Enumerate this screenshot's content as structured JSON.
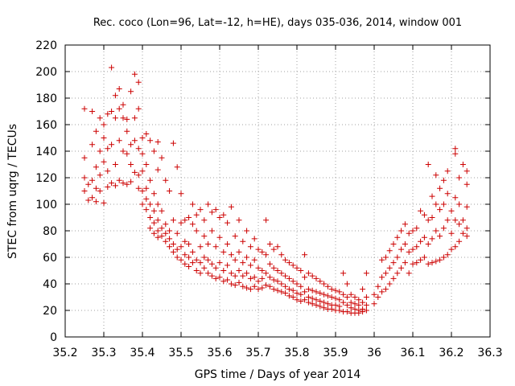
{
  "chart_data": {
    "type": "scatter",
    "title": "Rec. coco (Lon=96, Lat=-12, h=HE), days 035-036, 2014, window 001",
    "xlabel": "GPS time / Days of year 2014",
    "ylabel": "STEC from uqrg / TECUs",
    "xlim": [
      35.2,
      36.3
    ],
    "ylim": [
      0,
      220
    ],
    "xticks": [
      35.2,
      35.3,
      35.4,
      35.5,
      35.6,
      35.7,
      35.8,
      35.9,
      36.0,
      36.1,
      36.2,
      36.3
    ],
    "xtick_labels": [
      "35.2",
      "35.3",
      "35.4",
      "35.5",
      "35.6",
      "35.7",
      "35.8",
      "35.9",
      "36",
      "36.1",
      "36.2",
      "36.3"
    ],
    "yticks": [
      0,
      20,
      40,
      60,
      80,
      100,
      120,
      140,
      160,
      180,
      200,
      220
    ],
    "ytick_labels": [
      "0",
      "20",
      "40",
      "60",
      "80",
      "100",
      "120",
      "140",
      "160",
      "180",
      "200",
      "220"
    ],
    "grid": true,
    "marker": "plus",
    "color": "#cc0000",
    "points": [
      [
        35.25,
        172
      ],
      [
        35.25,
        135
      ],
      [
        35.25,
        120
      ],
      [
        35.25,
        110
      ],
      [
        35.26,
        103
      ],
      [
        35.26,
        115
      ],
      [
        35.27,
        170
      ],
      [
        35.27,
        145
      ],
      [
        35.27,
        118
      ],
      [
        35.27,
        105
      ],
      [
        35.28,
        155
      ],
      [
        35.28,
        128
      ],
      [
        35.28,
        112
      ],
      [
        35.28,
        102
      ],
      [
        35.29,
        165
      ],
      [
        35.29,
        140
      ],
      [
        35.29,
        122
      ],
      [
        35.29,
        110
      ],
      [
        35.3,
        160
      ],
      [
        35.3,
        150
      ],
      [
        35.3,
        132
      ],
      [
        35.3,
        101
      ],
      [
        35.31,
        168
      ],
      [
        35.31,
        142
      ],
      [
        35.31,
        125
      ],
      [
        35.31,
        113
      ],
      [
        35.32,
        170
      ],
      [
        35.32,
        203
      ],
      [
        35.32,
        145
      ],
      [
        35.32,
        116
      ],
      [
        35.33,
        165
      ],
      [
        35.33,
        182
      ],
      [
        35.33,
        130
      ],
      [
        35.33,
        114
      ],
      [
        35.34,
        187
      ],
      [
        35.34,
        172
      ],
      [
        35.34,
        148
      ],
      [
        35.34,
        118
      ],
      [
        35.35,
        175
      ],
      [
        35.35,
        165
      ],
      [
        35.35,
        140
      ],
      [
        35.35,
        116
      ],
      [
        35.36,
        164
      ],
      [
        35.36,
        155
      ],
      [
        35.36,
        138
      ],
      [
        35.36,
        115
      ],
      [
        35.37,
        185
      ],
      [
        35.37,
        145
      ],
      [
        35.37,
        130
      ],
      [
        35.37,
        117
      ],
      [
        35.38,
        198
      ],
      [
        35.38,
        165
      ],
      [
        35.38,
        148
      ],
      [
        35.38,
        124
      ],
      [
        35.39,
        192
      ],
      [
        35.39,
        172
      ],
      [
        35.39,
        142
      ],
      [
        35.39,
        122
      ],
      [
        35.39,
        112
      ],
      [
        35.4,
        150
      ],
      [
        35.4,
        138
      ],
      [
        35.4,
        125
      ],
      [
        35.4,
        110
      ],
      [
        35.4,
        100
      ],
      [
        35.41,
        153
      ],
      [
        35.41,
        130
      ],
      [
        35.41,
        112
      ],
      [
        35.41,
        104
      ],
      [
        35.41,
        96
      ],
      [
        35.42,
        148
      ],
      [
        35.42,
        118
      ],
      [
        35.42,
        100
      ],
      [
        35.42,
        90
      ],
      [
        35.42,
        82
      ],
      [
        35.43,
        140
      ],
      [
        35.43,
        108
      ],
      [
        35.43,
        95
      ],
      [
        35.43,
        86
      ],
      [
        35.43,
        78
      ],
      [
        35.44,
        147
      ],
      [
        35.44,
        126
      ],
      [
        35.44,
        100
      ],
      [
        35.44,
        88
      ],
      [
        35.44,
        80
      ],
      [
        35.44,
        75
      ],
      [
        35.45,
        135
      ],
      [
        35.45,
        95
      ],
      [
        35.45,
        82
      ],
      [
        35.45,
        76
      ],
      [
        35.46,
        118
      ],
      [
        35.46,
        85
      ],
      [
        35.46,
        78
      ],
      [
        35.46,
        72
      ],
      [
        35.47,
        110
      ],
      [
        35.47,
        80
      ],
      [
        35.47,
        74
      ],
      [
        35.47,
        68
      ],
      [
        35.48,
        146
      ],
      [
        35.48,
        88
      ],
      [
        35.48,
        70
      ],
      [
        35.48,
        64
      ],
      [
        35.49,
        128
      ],
      [
        35.49,
        78
      ],
      [
        35.49,
        66
      ],
      [
        35.49,
        60
      ],
      [
        35.5,
        108
      ],
      [
        35.5,
        86
      ],
      [
        35.5,
        68
      ],
      [
        35.5,
        58
      ],
      [
        35.51,
        88
      ],
      [
        35.51,
        72
      ],
      [
        35.51,
        62
      ],
      [
        35.51,
        55
      ],
      [
        35.52,
        90
      ],
      [
        35.52,
        70
      ],
      [
        35.52,
        60
      ],
      [
        35.52,
        53
      ],
      [
        35.53,
        100
      ],
      [
        35.53,
        85
      ],
      [
        35.53,
        64
      ],
      [
        35.53,
        56
      ],
      [
        35.54,
        92
      ],
      [
        35.54,
        80
      ],
      [
        35.54,
        58
      ],
      [
        35.54,
        50
      ],
      [
        35.55,
        96
      ],
      [
        35.55,
        68
      ],
      [
        35.55,
        56
      ],
      [
        35.55,
        48
      ],
      [
        35.56,
        88
      ],
      [
        35.56,
        76
      ],
      [
        35.56,
        60
      ],
      [
        35.56,
        52
      ],
      [
        35.57,
        100
      ],
      [
        35.57,
        70
      ],
      [
        35.57,
        58
      ],
      [
        35.57,
        48
      ],
      [
        35.58,
        94
      ],
      [
        35.58,
        80
      ],
      [
        35.58,
        55
      ],
      [
        35.58,
        46
      ],
      [
        35.59,
        96
      ],
      [
        35.59,
        68
      ],
      [
        35.59,
        52
      ],
      [
        35.59,
        44
      ],
      [
        35.6,
        90
      ],
      [
        35.6,
        75
      ],
      [
        35.6,
        56
      ],
      [
        35.6,
        45
      ],
      [
        35.61,
        92
      ],
      [
        35.61,
        64
      ],
      [
        35.61,
        50
      ],
      [
        35.61,
        42
      ],
      [
        35.62,
        86
      ],
      [
        35.62,
        70
      ],
      [
        35.62,
        54
      ],
      [
        35.62,
        43
      ],
      [
        35.63,
        98
      ],
      [
        35.63,
        62
      ],
      [
        35.63,
        48
      ],
      [
        35.63,
        40
      ],
      [
        35.64,
        76
      ],
      [
        35.64,
        58
      ],
      [
        35.64,
        46
      ],
      [
        35.64,
        39
      ],
      [
        35.65,
        88
      ],
      [
        35.65,
        64
      ],
      [
        35.65,
        50
      ],
      [
        35.65,
        41
      ],
      [
        35.66,
        72
      ],
      [
        35.66,
        56
      ],
      [
        35.66,
        46
      ],
      [
        35.66,
        38
      ],
      [
        35.67,
        80
      ],
      [
        35.67,
        60
      ],
      [
        35.67,
        48
      ],
      [
        35.67,
        37
      ],
      [
        35.68,
        68
      ],
      [
        35.68,
        54
      ],
      [
        35.68,
        44
      ],
      [
        35.68,
        36
      ],
      [
        35.69,
        74
      ],
      [
        35.69,
        58
      ],
      [
        35.69,
        45
      ],
      [
        35.69,
        38
      ],
      [
        35.7,
        66
      ],
      [
        35.7,
        52
      ],
      [
        35.7,
        42
      ],
      [
        35.7,
        36
      ],
      [
        35.71,
        64
      ],
      [
        35.71,
        50
      ],
      [
        35.71,
        44
      ],
      [
        35.71,
        37
      ],
      [
        35.72,
        88
      ],
      [
        35.72,
        62
      ],
      [
        35.72,
        48
      ],
      [
        35.72,
        39
      ],
      [
        35.73,
        70
      ],
      [
        35.73,
        55
      ],
      [
        35.73,
        45
      ],
      [
        35.73,
        38
      ],
      [
        35.74,
        66
      ],
      [
        35.74,
        52
      ],
      [
        35.74,
        43
      ],
      [
        35.74,
        36
      ],
      [
        35.75,
        68
      ],
      [
        35.75,
        50
      ],
      [
        35.75,
        42
      ],
      [
        35.75,
        35
      ],
      [
        35.76,
        62
      ],
      [
        35.76,
        48
      ],
      [
        35.76,
        40
      ],
      [
        35.76,
        34
      ],
      [
        35.77,
        58
      ],
      [
        35.77,
        46
      ],
      [
        35.77,
        38
      ],
      [
        35.77,
        33
      ],
      [
        35.78,
        56
      ],
      [
        35.78,
        44
      ],
      [
        35.78,
        36
      ],
      [
        35.78,
        31
      ],
      [
        35.79,
        54
      ],
      [
        35.79,
        42
      ],
      [
        35.79,
        35
      ],
      [
        35.79,
        30
      ],
      [
        35.8,
        52
      ],
      [
        35.8,
        40
      ],
      [
        35.8,
        33
      ],
      [
        35.8,
        28
      ],
      [
        35.81,
        50
      ],
      [
        35.81,
        38
      ],
      [
        35.81,
        32
      ],
      [
        35.81,
        27
      ],
      [
        35.82,
        62
      ],
      [
        35.82,
        45
      ],
      [
        35.82,
        34
      ],
      [
        35.82,
        28
      ],
      [
        35.83,
        48
      ],
      [
        35.83,
        36
      ],
      [
        35.83,
        30
      ],
      [
        35.83,
        26
      ],
      [
        35.84,
        46
      ],
      [
        35.84,
        35
      ],
      [
        35.84,
        29
      ],
      [
        35.84,
        25
      ],
      [
        35.85,
        44
      ],
      [
        35.85,
        34
      ],
      [
        35.85,
        28
      ],
      [
        35.85,
        24
      ],
      [
        35.86,
        42
      ],
      [
        35.86,
        33
      ],
      [
        35.86,
        27
      ],
      [
        35.86,
        23
      ],
      [
        35.87,
        40
      ],
      [
        35.87,
        32
      ],
      [
        35.87,
        26
      ],
      [
        35.87,
        22
      ],
      [
        35.88,
        38
      ],
      [
        35.88,
        31
      ],
      [
        35.88,
        25
      ],
      [
        35.88,
        21
      ],
      [
        35.89,
        36
      ],
      [
        35.89,
        30
      ],
      [
        35.89,
        24
      ],
      [
        35.89,
        21
      ],
      [
        35.9,
        35
      ],
      [
        35.9,
        29
      ],
      [
        35.9,
        24
      ],
      [
        35.9,
        20
      ],
      [
        35.91,
        34
      ],
      [
        35.91,
        28
      ],
      [
        35.91,
        23
      ],
      [
        35.91,
        20
      ],
      [
        35.92,
        48
      ],
      [
        35.92,
        32
      ],
      [
        35.92,
        26
      ],
      [
        35.92,
        19
      ],
      [
        35.93,
        40
      ],
      [
        35.93,
        30
      ],
      [
        35.93,
        24
      ],
      [
        35.93,
        19
      ],
      [
        35.94,
        32
      ],
      [
        35.94,
        26
      ],
      [
        35.94,
        22
      ],
      [
        35.94,
        18
      ],
      [
        35.95,
        30
      ],
      [
        35.95,
        25
      ],
      [
        35.95,
        21
      ],
      [
        35.95,
        18
      ],
      [
        35.96,
        28
      ],
      [
        35.96,
        24
      ],
      [
        35.96,
        20
      ],
      [
        35.96,
        18
      ],
      [
        35.97,
        36
      ],
      [
        35.97,
        26
      ],
      [
        35.97,
        21
      ],
      [
        35.97,
        19
      ],
      [
        35.98,
        48
      ],
      [
        35.98,
        30
      ],
      [
        35.98,
        24
      ],
      [
        35.98,
        20
      ],
      [
        36.0,
        32
      ],
      [
        36.0,
        25
      ],
      [
        36.01,
        38
      ],
      [
        36.01,
        30
      ],
      [
        36.02,
        58
      ],
      [
        36.02,
        45
      ],
      [
        36.02,
        34
      ],
      [
        36.03,
        60
      ],
      [
        36.03,
        48
      ],
      [
        36.03,
        36
      ],
      [
        36.04,
        65
      ],
      [
        36.04,
        52
      ],
      [
        36.04,
        40
      ],
      [
        36.05,
        70
      ],
      [
        36.05,
        56
      ],
      [
        36.05,
        44
      ],
      [
        36.06,
        75
      ],
      [
        36.06,
        60
      ],
      [
        36.06,
        48
      ],
      [
        36.07,
        80
      ],
      [
        36.07,
        66
      ],
      [
        36.07,
        52
      ],
      [
        36.08,
        85
      ],
      [
        36.08,
        70
      ],
      [
        36.08,
        56
      ],
      [
        36.09,
        78
      ],
      [
        36.09,
        64
      ],
      [
        36.09,
        48
      ],
      [
        36.1,
        80
      ],
      [
        36.1,
        66
      ],
      [
        36.1,
        55
      ],
      [
        36.11,
        82
      ],
      [
        36.11,
        68
      ],
      [
        36.11,
        56
      ],
      [
        36.12,
        95
      ],
      [
        36.12,
        72
      ],
      [
        36.12,
        58
      ],
      [
        36.13,
        92
      ],
      [
        36.13,
        75
      ],
      [
        36.13,
        60
      ],
      [
        36.14,
        130
      ],
      [
        36.14,
        88
      ],
      [
        36.14,
        70
      ],
      [
        36.14,
        55
      ],
      [
        36.15,
        106
      ],
      [
        36.15,
        90
      ],
      [
        36.15,
        74
      ],
      [
        36.15,
        56
      ],
      [
        36.16,
        122
      ],
      [
        36.16,
        100
      ],
      [
        36.16,
        80
      ],
      [
        36.16,
        57
      ],
      [
        36.17,
        112
      ],
      [
        36.17,
        96
      ],
      [
        36.17,
        76
      ],
      [
        36.17,
        58
      ],
      [
        36.18,
        118
      ],
      [
        36.18,
        100
      ],
      [
        36.18,
        82
      ],
      [
        36.18,
        60
      ],
      [
        36.19,
        125
      ],
      [
        36.19,
        108
      ],
      [
        36.19,
        88
      ],
      [
        36.19,
        62
      ],
      [
        36.2,
        95
      ],
      [
        36.2,
        78
      ],
      [
        36.2,
        66
      ],
      [
        36.21,
        142
      ],
      [
        36.21,
        138
      ],
      [
        36.21,
        105
      ],
      [
        36.21,
        88
      ],
      [
        36.21,
        68
      ],
      [
        36.22,
        120
      ],
      [
        36.22,
        100
      ],
      [
        36.22,
        85
      ],
      [
        36.22,
        72
      ],
      [
        36.23,
        130
      ],
      [
        36.23,
        88
      ],
      [
        36.23,
        78
      ],
      [
        36.24,
        125
      ],
      [
        36.24,
        115
      ],
      [
        36.24,
        98
      ],
      [
        36.24,
        82
      ],
      [
        36.24,
        76
      ]
    ]
  }
}
